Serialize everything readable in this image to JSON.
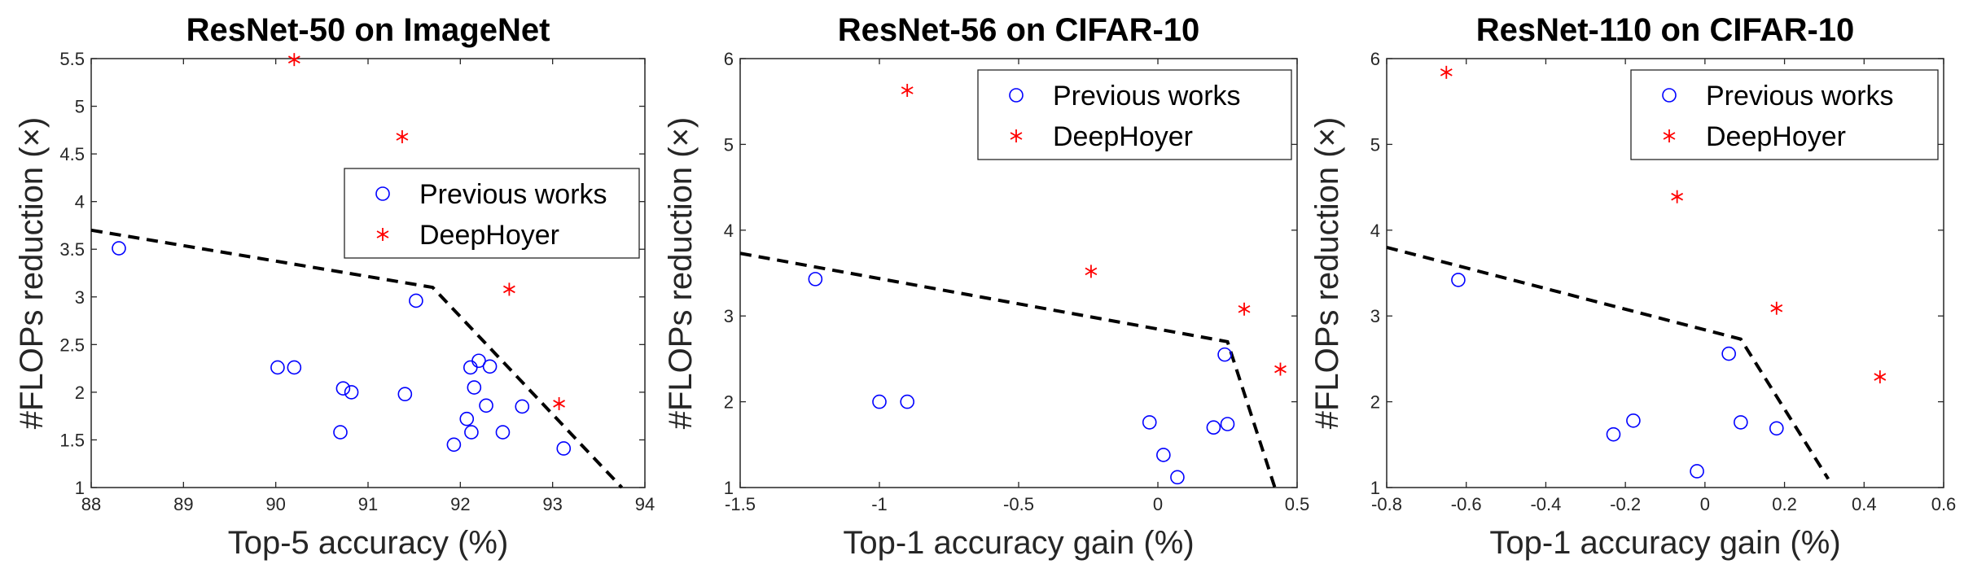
{
  "chart_data": [
    {
      "type": "scatter",
      "title": "ResNet-50 on ImageNet",
      "xlabel": "Top-5 accuracy (%)",
      "ylabel": "#FLOPs reduction (×)",
      "xlim": [
        88,
        94
      ],
      "ylim": [
        1,
        5.5
      ],
      "xticks": [
        88,
        89,
        90,
        91,
        92,
        93,
        94
      ],
      "yticks": [
        1,
        1.5,
        2,
        2.5,
        3,
        3.5,
        4,
        4.5,
        5,
        5.5
      ],
      "xtick_labels": [
        "88",
        "89",
        "90",
        "91",
        "92",
        "93",
        "94"
      ],
      "ytick_labels": [
        "1",
        "1.5",
        "2",
        "2.5",
        "3",
        "3.5",
        "4",
        "4.5",
        "5",
        "5.5"
      ],
      "legend": {
        "position": "right-middle",
        "entries": [
          "Previous works",
          "DeepHoyer"
        ]
      },
      "series": [
        {
          "name": "Previous works",
          "marker": "circle",
          "color": "#0000ff",
          "points": [
            [
              88.3,
              3.51
            ],
            [
              90.02,
              2.26
            ],
            [
              90.2,
              2.26
            ],
            [
              90.7,
              1.58
            ],
            [
              90.73,
              2.04
            ],
            [
              90.82,
              2.0
            ],
            [
              91.4,
              1.98
            ],
            [
              91.52,
              2.96
            ],
            [
              91.93,
              1.45
            ],
            [
              92.07,
              1.72
            ],
            [
              92.11,
              2.26
            ],
            [
              92.12,
              1.58
            ],
            [
              92.15,
              2.05
            ],
            [
              92.2,
              2.33
            ],
            [
              92.28,
              1.86
            ],
            [
              92.32,
              2.27
            ],
            [
              92.46,
              1.58
            ],
            [
              92.67,
              1.85
            ],
            [
              93.12,
              1.41
            ]
          ]
        },
        {
          "name": "DeepHoyer",
          "marker": "asterisk",
          "color": "#ff0000",
          "points": [
            [
              90.2,
              5.49
            ],
            [
              91.37,
              4.68
            ],
            [
              92.53,
              3.08
            ],
            [
              93.07,
              1.88
            ]
          ]
        }
      ],
      "frontier": [
        [
          88,
          3.7
        ],
        [
          91.7,
          3.1
        ],
        [
          93.75,
          1.0
        ]
      ]
    },
    {
      "type": "scatter",
      "title": "ResNet-56 on CIFAR-10",
      "xlabel": "Top-1 accuracy gain (%)",
      "ylabel": "#FLOPs reduction (×)",
      "xlim": [
        -1.5,
        0.5
      ],
      "ylim": [
        1,
        6
      ],
      "xticks": [
        -1.5,
        -1,
        -0.5,
        0,
        0.5
      ],
      "yticks": [
        1,
        2,
        3,
        4,
        5,
        6
      ],
      "xtick_labels": [
        "-1.5",
        "-1",
        "-0.5",
        "0",
        "0.5"
      ],
      "ytick_labels": [
        "1",
        "2",
        "3",
        "4",
        "5",
        "6"
      ],
      "legend": {
        "position": "top-right",
        "entries": [
          "Previous works",
          "DeepHoyer"
        ]
      },
      "series": [
        {
          "name": "Previous works",
          "marker": "circle",
          "color": "#0000ff",
          "points": [
            [
              -1.23,
              3.43
            ],
            [
              -1.0,
              2.0
            ],
            [
              -0.9,
              2.0
            ],
            [
              -0.03,
              1.76
            ],
            [
              0.02,
              1.38
            ],
            [
              0.07,
              1.12
            ],
            [
              0.2,
              1.7
            ],
            [
              0.24,
              2.55
            ],
            [
              0.25,
              1.74
            ]
          ]
        },
        {
          "name": "DeepHoyer",
          "marker": "asterisk",
          "color": "#ff0000",
          "points": [
            [
              -0.9,
              5.63
            ],
            [
              -0.24,
              3.52
            ],
            [
              0.31,
              3.08
            ],
            [
              0.44,
              2.38
            ]
          ]
        }
      ],
      "frontier": [
        [
          -1.5,
          3.73
        ],
        [
          0.25,
          2.7
        ],
        [
          0.42,
          1.0
        ]
      ]
    },
    {
      "type": "scatter",
      "title": "ResNet-110 on CIFAR-10",
      "xlabel": "Top-1 accuracy gain (%)",
      "ylabel": "#FLOPs reduction (×)",
      "xlim": [
        -0.8,
        0.6
      ],
      "ylim": [
        1,
        6
      ],
      "xticks": [
        -0.8,
        -0.6,
        -0.4,
        -0.2,
        0,
        0.2,
        0.4,
        0.6
      ],
      "yticks": [
        1,
        2,
        3,
        4,
        5,
        6
      ],
      "xtick_labels": [
        "-0.8",
        "-0.6",
        "-0.4",
        "-0.2",
        "0",
        "0.2",
        "0.4",
        "0.6"
      ],
      "ytick_labels": [
        "1",
        "2",
        "3",
        "4",
        "5",
        "6"
      ],
      "legend": {
        "position": "top-right",
        "entries": [
          "Previous works",
          "DeepHoyer"
        ]
      },
      "series": [
        {
          "name": "Previous works",
          "marker": "circle",
          "color": "#0000ff",
          "points": [
            [
              -0.62,
              3.42
            ],
            [
              -0.23,
              1.62
            ],
            [
              -0.18,
              1.78
            ],
            [
              -0.02,
              1.19
            ],
            [
              0.06,
              2.56
            ],
            [
              0.09,
              1.76
            ],
            [
              0.18,
              1.69
            ]
          ]
        },
        {
          "name": "DeepHoyer",
          "marker": "asterisk",
          "color": "#ff0000",
          "points": [
            [
              -0.65,
              5.84
            ],
            [
              -0.07,
              4.39
            ],
            [
              0.18,
              3.09
            ],
            [
              0.44,
              2.29
            ]
          ]
        }
      ],
      "frontier": [
        [
          -0.8,
          3.8
        ],
        [
          0.09,
          2.73
        ],
        [
          0.31,
          1.1
        ]
      ]
    }
  ]
}
